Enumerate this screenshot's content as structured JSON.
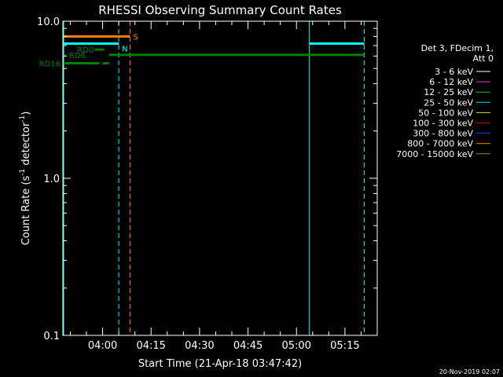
{
  "chart_data": {
    "type": "line",
    "title": "RHESSI Observing Summary Count Rates",
    "xlabel": "Start Time (21-Apr-18 03:47:42)",
    "ylabel": {
      "prefix": "Count Rate (s",
      "sup1": "-1",
      "middle": " detector",
      "sup2": "-1",
      "suffix": ")"
    },
    "y_scale": "log",
    "ylim": [
      0.1,
      10.0
    ],
    "y_ticks": [
      {
        "value": 10.0,
        "label": "10.0"
      },
      {
        "value": 1.0,
        "label": "1.0"
      },
      {
        "value": 0.1,
        "label": "0.1"
      }
    ],
    "xlim": [
      "03:47:42",
      "05:25:00"
    ],
    "x_ticks": [
      {
        "time": "04:00",
        "label": "04:00"
      },
      {
        "time": "04:15",
        "label": "04:15"
      },
      {
        "time": "04:30",
        "label": "04:30"
      },
      {
        "time": "04:45",
        "label": "04:45"
      },
      {
        "time": "05:00",
        "label": "05:00"
      },
      {
        "time": "05:15",
        "label": "05:15"
      }
    ],
    "legend": {
      "placement": "right",
      "header": [
        "Det 3, FDecim 1,",
        "Att 0"
      ],
      "entries": [
        {
          "label": "3 - 6 keV",
          "color": "#ffffff"
        },
        {
          "label": "6 - 12 keV",
          "color": "#d040d0"
        },
        {
          "label": "12 - 25 keV",
          "color": "#00d000"
        },
        {
          "label": "25 - 50 keV",
          "color": "#00e0e0"
        },
        {
          "label": "50 - 100 keV",
          "color": "#e0e000"
        },
        {
          "label": "100 - 300 keV",
          "color": "#d00000"
        },
        {
          "label": "300 - 800 keV",
          "color": "#2040ff"
        },
        {
          "label": "800 - 7000 keV",
          "color": "#ff8000"
        },
        {
          "label": "7000 - 15000 keV",
          "color": "#a08020"
        }
      ]
    },
    "vertical_lines": [
      {
        "time": "03:47:42",
        "color": "#00ffff",
        "style": "solid"
      },
      {
        "time": "04:05:00",
        "color": "#00ffff",
        "style": "dashed"
      },
      {
        "time": "04:08:30",
        "color": "#ff8000",
        "style": "dashed"
      },
      {
        "time": "05:04:00",
        "color": "#00ffff",
        "style": "solid"
      },
      {
        "time": "05:21:00",
        "color": "#00ffff",
        "style": "dashed"
      }
    ],
    "bars": [
      {
        "name": "S",
        "color": "#ff8000",
        "y": 8.0,
        "width": 3,
        "segments": [
          [
            "03:47:42",
            "04:08:30"
          ]
        ],
        "label": "S",
        "label_pos": "end"
      },
      {
        "name": "N",
        "color": "#00ffff",
        "y": 7.2,
        "width": 3,
        "segments": [
          [
            "03:47:42",
            "04:05:00"
          ],
          [
            "05:04:00",
            "05:21:00"
          ]
        ],
        "label": "N",
        "label_pos": "end"
      },
      {
        "name": "RD0",
        "color": "#008000",
        "y": 6.6,
        "width": 3,
        "segments": [
          [
            "03:57:30",
            "04:00:30"
          ]
        ],
        "label": "RD0",
        "label_pos": "start"
      },
      {
        "name": "RD6",
        "color": "#008000",
        "y": 6.1,
        "width": 3,
        "segments": [
          [
            "03:47:42",
            "03:48:30"
          ],
          [
            "04:02:00",
            "05:21:00"
          ]
        ],
        "label": "RD6",
        "label_pos": "start"
      },
      {
        "name": "RD16",
        "color": "#008000",
        "y": 5.4,
        "width": 3,
        "segments": [
          [
            "03:47:42",
            "03:59:00"
          ],
          [
            "04:00:00",
            "04:02:00"
          ]
        ],
        "label": "RD16",
        "label_pos": "start"
      }
    ]
  },
  "timestamp": "20-Nov-2019 02:07"
}
